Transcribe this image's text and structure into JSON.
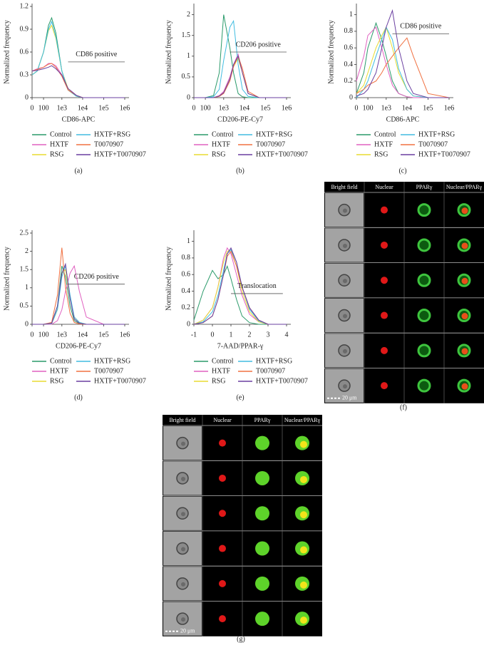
{
  "chart_data": [
    {
      "type": "line",
      "panel": "(a)",
      "xlabel": "CD86-APC",
      "ylabel": "Normalized frequency",
      "xscale": "symlog",
      "xlim": [
        0,
        1000000
      ],
      "ylim": [
        0,
        1.2
      ],
      "xticks": [
        0,
        100,
        {
          "value": 1000,
          "label": "1e3"
        },
        {
          "value": 10000,
          "label": "1e4"
        },
        {
          "value": 100000,
          "label": "1e5"
        },
        {
          "value": 1000000,
          "label": "1e6"
        }
      ],
      "yticks": [
        0,
        0.3,
        0.6,
        0.9,
        1.2
      ],
      "annotation": {
        "text": "CD86 positive",
        "x": [
          2000,
          1000000
        ],
        "y": 0.47
      },
      "x": [
        0,
        30,
        100,
        200,
        300,
        500,
        1000,
        2000,
        5000,
        10000,
        100000,
        1000000
      ],
      "series": [
        {
          "name": "Control",
          "color": "#2a9a6a",
          "values": [
            0.3,
            0.35,
            0.6,
            0.95,
            1.05,
            0.85,
            0.35,
            0.1,
            0.02,
            0,
            0,
            0
          ]
        },
        {
          "name": "HXTF",
          "color": "#e060c0",
          "values": [
            0.35,
            0.38,
            0.4,
            0.45,
            0.45,
            0.42,
            0.3,
            0.12,
            0.03,
            0,
            0,
            0
          ]
        },
        {
          "name": "RSG",
          "color": "#e8dc30",
          "values": [
            0.3,
            0.35,
            0.6,
            0.88,
            0.95,
            0.78,
            0.35,
            0.12,
            0.02,
            0,
            0,
            0
          ]
        },
        {
          "name": "HXTF+RSG",
          "color": "#40bce0",
          "values": [
            0.3,
            0.35,
            0.6,
            0.9,
            1.0,
            0.8,
            0.35,
            0.1,
            0.02,
            0,
            0,
            0
          ]
        },
        {
          "name": "T0070907",
          "color": "#f07040",
          "values": [
            0.35,
            0.37,
            0.4,
            0.44,
            0.45,
            0.4,
            0.28,
            0.1,
            0.03,
            0,
            0,
            0
          ]
        },
        {
          "name": "HXTF+T0070907",
          "color": "#6a3fa0",
          "values": [
            0.35,
            0.36,
            0.38,
            0.4,
            0.42,
            0.38,
            0.3,
            0.12,
            0.03,
            0,
            0,
            0
          ]
        }
      ]
    },
    {
      "type": "line",
      "panel": "(b)",
      "xlabel": "CD206-PE-Cy7",
      "ylabel": "Normalized frequency",
      "xscale": "symlog",
      "xlim": [
        0,
        1000000
      ],
      "ylim": [
        0,
        2.2
      ],
      "xticks": [
        0,
        100,
        {
          "value": 1000,
          "label": "1e3"
        },
        {
          "value": 10000,
          "label": "1e4"
        },
        {
          "value": 100000,
          "label": "1e5"
        },
        {
          "value": 1000000,
          "label": "1e6"
        }
      ],
      "yticks": [
        0,
        0.5,
        1,
        1.5,
        2
      ],
      "annotation": {
        "text": "CD206 positive",
        "x": [
          2000,
          1000000
        ],
        "y": 1.1
      },
      "x": [
        0,
        100,
        300,
        600,
        1000,
        2000,
        3000,
        5000,
        8000,
        15000,
        50000,
        1000000
      ],
      "series": [
        {
          "name": "Control",
          "color": "#2a9a6a",
          "values": [
            0,
            0,
            0.05,
            0.6,
            2.0,
            1.2,
            0.6,
            0.1,
            0.02,
            0,
            0,
            0
          ]
        },
        {
          "name": "HXTF",
          "color": "#e060c0",
          "values": [
            0,
            0,
            0,
            0.05,
            0.15,
            0.5,
            0.8,
            1.05,
            0.6,
            0.1,
            0,
            0
          ]
        },
        {
          "name": "RSG",
          "color": "#e8dc30",
          "values": [
            0,
            0,
            0,
            0.04,
            0.12,
            0.45,
            0.75,
            0.95,
            0.6,
            0.1,
            0,
            0
          ]
        },
        {
          "name": "HXTF+RSG",
          "color": "#40bce0",
          "values": [
            0,
            0,
            0.02,
            0.2,
            0.9,
            1.7,
            1.85,
            0.8,
            0.2,
            0.03,
            0,
            0
          ]
        },
        {
          "name": "T0070907",
          "color": "#f07040",
          "values": [
            0,
            0,
            0,
            0.03,
            0.1,
            0.4,
            0.75,
            1.0,
            0.7,
            0.15,
            0,
            0
          ]
        },
        {
          "name": "HXTF+T0070907",
          "color": "#6a3fa0",
          "values": [
            0,
            0,
            0,
            0.04,
            0.12,
            0.45,
            0.8,
            1.0,
            0.6,
            0.1,
            0,
            0
          ]
        }
      ]
    },
    {
      "type": "line",
      "panel": "(c)",
      "xlabel": "CD86-APC",
      "ylabel": "Normalized frequency",
      "xscale": "symlog",
      "xlim": [
        0,
        1000000
      ],
      "ylim": [
        0,
        1.1
      ],
      "xticks": [
        0,
        100,
        {
          "value": 1000,
          "label": "1e3"
        },
        {
          "value": 10000,
          "label": "1e4"
        },
        {
          "value": 100000,
          "label": "1e5"
        },
        {
          "value": 1000000,
          "label": "1e6"
        }
      ],
      "yticks": [
        0,
        0.2,
        0.4,
        0.6,
        0.8,
        1
      ],
      "annotation": {
        "text": "CD86 positive",
        "x": [
          2000,
          1000000
        ],
        "y": 0.77
      },
      "x": [
        0,
        50,
        100,
        300,
        600,
        1000,
        2000,
        4000,
        10000,
        20000,
        100000,
        1000000
      ],
      "series": [
        {
          "name": "Control",
          "color": "#2a9a6a",
          "values": [
            0.05,
            0.3,
            0.6,
            0.9,
            0.7,
            0.5,
            0.2,
            0.05,
            0.01,
            0,
            0,
            0
          ]
        },
        {
          "name": "HXTF",
          "color": "#e060c0",
          "values": [
            0.2,
            0.5,
            0.75,
            0.85,
            0.6,
            0.4,
            0.15,
            0.05,
            0.01,
            0,
            0,
            0
          ]
        },
        {
          "name": "RSG",
          "color": "#e8dc30",
          "values": [
            0.05,
            0.15,
            0.3,
            0.6,
            0.75,
            0.85,
            0.6,
            0.3,
            0.1,
            0.02,
            0,
            0
          ]
        },
        {
          "name": "HXTF+RSG",
          "color": "#40bce0",
          "values": [
            0,
            0.1,
            0.2,
            0.5,
            0.7,
            0.85,
            0.7,
            0.35,
            0.1,
            0.02,
            0,
            0
          ]
        },
        {
          "name": "T0070907",
          "color": "#f07040",
          "values": [
            0.05,
            0.1,
            0.15,
            0.2,
            0.3,
            0.4,
            0.5,
            0.6,
            0.72,
            0.5,
            0.05,
            0
          ]
        },
        {
          "name": "HXTF+T0070907",
          "color": "#6a3fa0",
          "values": [
            0.02,
            0.05,
            0.1,
            0.3,
            0.6,
            0.85,
            1.05,
            0.6,
            0.2,
            0.05,
            0,
            0
          ]
        }
      ]
    },
    {
      "type": "line",
      "panel": "(d)",
      "xlabel": "CD206-PE-Cy7",
      "ylabel": "Normalized frequency",
      "xscale": "symlog",
      "xlim": [
        0,
        1000000
      ],
      "ylim": [
        0,
        2.5
      ],
      "xticks": [
        0,
        100,
        {
          "value": 1000,
          "label": "1e3"
        },
        {
          "value": 10000,
          "label": "1e4"
        },
        {
          "value": 100000,
          "label": "1e5"
        },
        {
          "value": 1000000,
          "label": "1e6"
        }
      ],
      "yticks": [
        0,
        0.5,
        1,
        1.5,
        2,
        2.5
      ],
      "annotation": {
        "text": "CD206 positive",
        "x": [
          2000,
          1000000
        ],
        "y": 1.1
      },
      "x": [
        0,
        100,
        300,
        600,
        1000,
        1500,
        2500,
        4000,
        7000,
        15000,
        100000,
        1000000
      ],
      "series": [
        {
          "name": "Control",
          "color": "#2a9a6a",
          "values": [
            0,
            0,
            0.02,
            0.5,
            1.6,
            1.3,
            0.5,
            0.1,
            0.02,
            0,
            0,
            0
          ]
        },
        {
          "name": "HXTF",
          "color": "#e060c0",
          "values": [
            0,
            0,
            0,
            0.1,
            0.4,
            0.9,
            1.4,
            1.6,
            0.9,
            0.2,
            0,
            0
          ]
        },
        {
          "name": "RSG",
          "color": "#e8dc30",
          "values": [
            0,
            0,
            0.02,
            0.4,
            1.4,
            1.5,
            0.7,
            0.2,
            0.05,
            0,
            0,
            0
          ]
        },
        {
          "name": "HXTF+RSG",
          "color": "#40bce0",
          "values": [
            0,
            0,
            0.02,
            0.4,
            1.3,
            1.6,
            0.8,
            0.2,
            0.05,
            0,
            0,
            0
          ]
        },
        {
          "name": "T0070907",
          "color": "#f07040",
          "values": [
            0,
            0,
            0.05,
            0.8,
            2.1,
            1.0,
            0.3,
            0.05,
            0.01,
            0,
            0,
            0
          ]
        },
        {
          "name": "HXTF+T0070907",
          "color": "#6a3fa0",
          "values": [
            0,
            0,
            0.03,
            0.5,
            1.4,
            1.65,
            0.7,
            0.15,
            0.03,
            0,
            0,
            0
          ]
        }
      ]
    },
    {
      "type": "line",
      "panel": "(e)",
      "xlabel": "7-AAD/PPAR-γ",
      "ylabel": "Normalized frequency",
      "xscale": "linear",
      "xlim": [
        -1,
        4
      ],
      "ylim": [
        0,
        1.1
      ],
      "xticks": [
        -1,
        0,
        1,
        2,
        3,
        4
      ],
      "yticks": [
        0,
        0.2,
        0.4,
        0.6,
        0.8,
        1
      ],
      "annotation": {
        "text": "Translocation",
        "x": [
          1,
          3.8
        ],
        "y": 0.37
      },
      "x": [
        -1,
        -0.5,
        0,
        0.3,
        0.6,
        0.8,
        1,
        1.3,
        1.6,
        2,
        2.5,
        3,
        4
      ],
      "series": [
        {
          "name": "Control",
          "color": "#2a9a6a",
          "values": [
            0.05,
            0.4,
            0.65,
            0.55,
            0.6,
            0.7,
            0.55,
            0.3,
            0.1,
            0.02,
            0,
            0,
            0
          ]
        },
        {
          "name": "HXTF",
          "color": "#e060c0",
          "values": [
            0,
            0.05,
            0.2,
            0.45,
            0.8,
            0.92,
            0.85,
            0.6,
            0.35,
            0.12,
            0.03,
            0,
            0
          ]
        },
        {
          "name": "RSG",
          "color": "#e8dc30",
          "values": [
            0,
            0.05,
            0.2,
            0.45,
            0.75,
            0.88,
            0.9,
            0.7,
            0.4,
            0.15,
            0.03,
            0,
            0
          ]
        },
        {
          "name": "HXTF+RSG",
          "color": "#40bce0",
          "values": [
            0,
            0.03,
            0.15,
            0.35,
            0.65,
            0.85,
            0.9,
            0.75,
            0.45,
            0.18,
            0.04,
            0,
            0
          ]
        },
        {
          "name": "T0070907",
          "color": "#f07040",
          "values": [
            0,
            0.02,
            0.1,
            0.3,
            0.6,
            0.82,
            0.88,
            0.7,
            0.45,
            0.2,
            0.05,
            0,
            0
          ]
        },
        {
          "name": "HXTF+T0070907",
          "color": "#6a3fa0",
          "values": [
            0,
            0.02,
            0.1,
            0.3,
            0.6,
            0.85,
            0.92,
            0.75,
            0.45,
            0.2,
            0.05,
            0,
            0
          ]
        }
      ]
    }
  ],
  "image_panels": [
    {
      "label": "(f)",
      "columns": [
        "Bright field",
        "Nuclear",
        "PPARγ",
        "Nuclear/PPARγ"
      ],
      "scale_bar": "20 μm"
    },
    {
      "label": "(g)",
      "columns": [
        "Bright field",
        "Nuclear",
        "PPARγ",
        "Nuclear/PPARγ"
      ],
      "scale_bar": "20 μm"
    }
  ]
}
